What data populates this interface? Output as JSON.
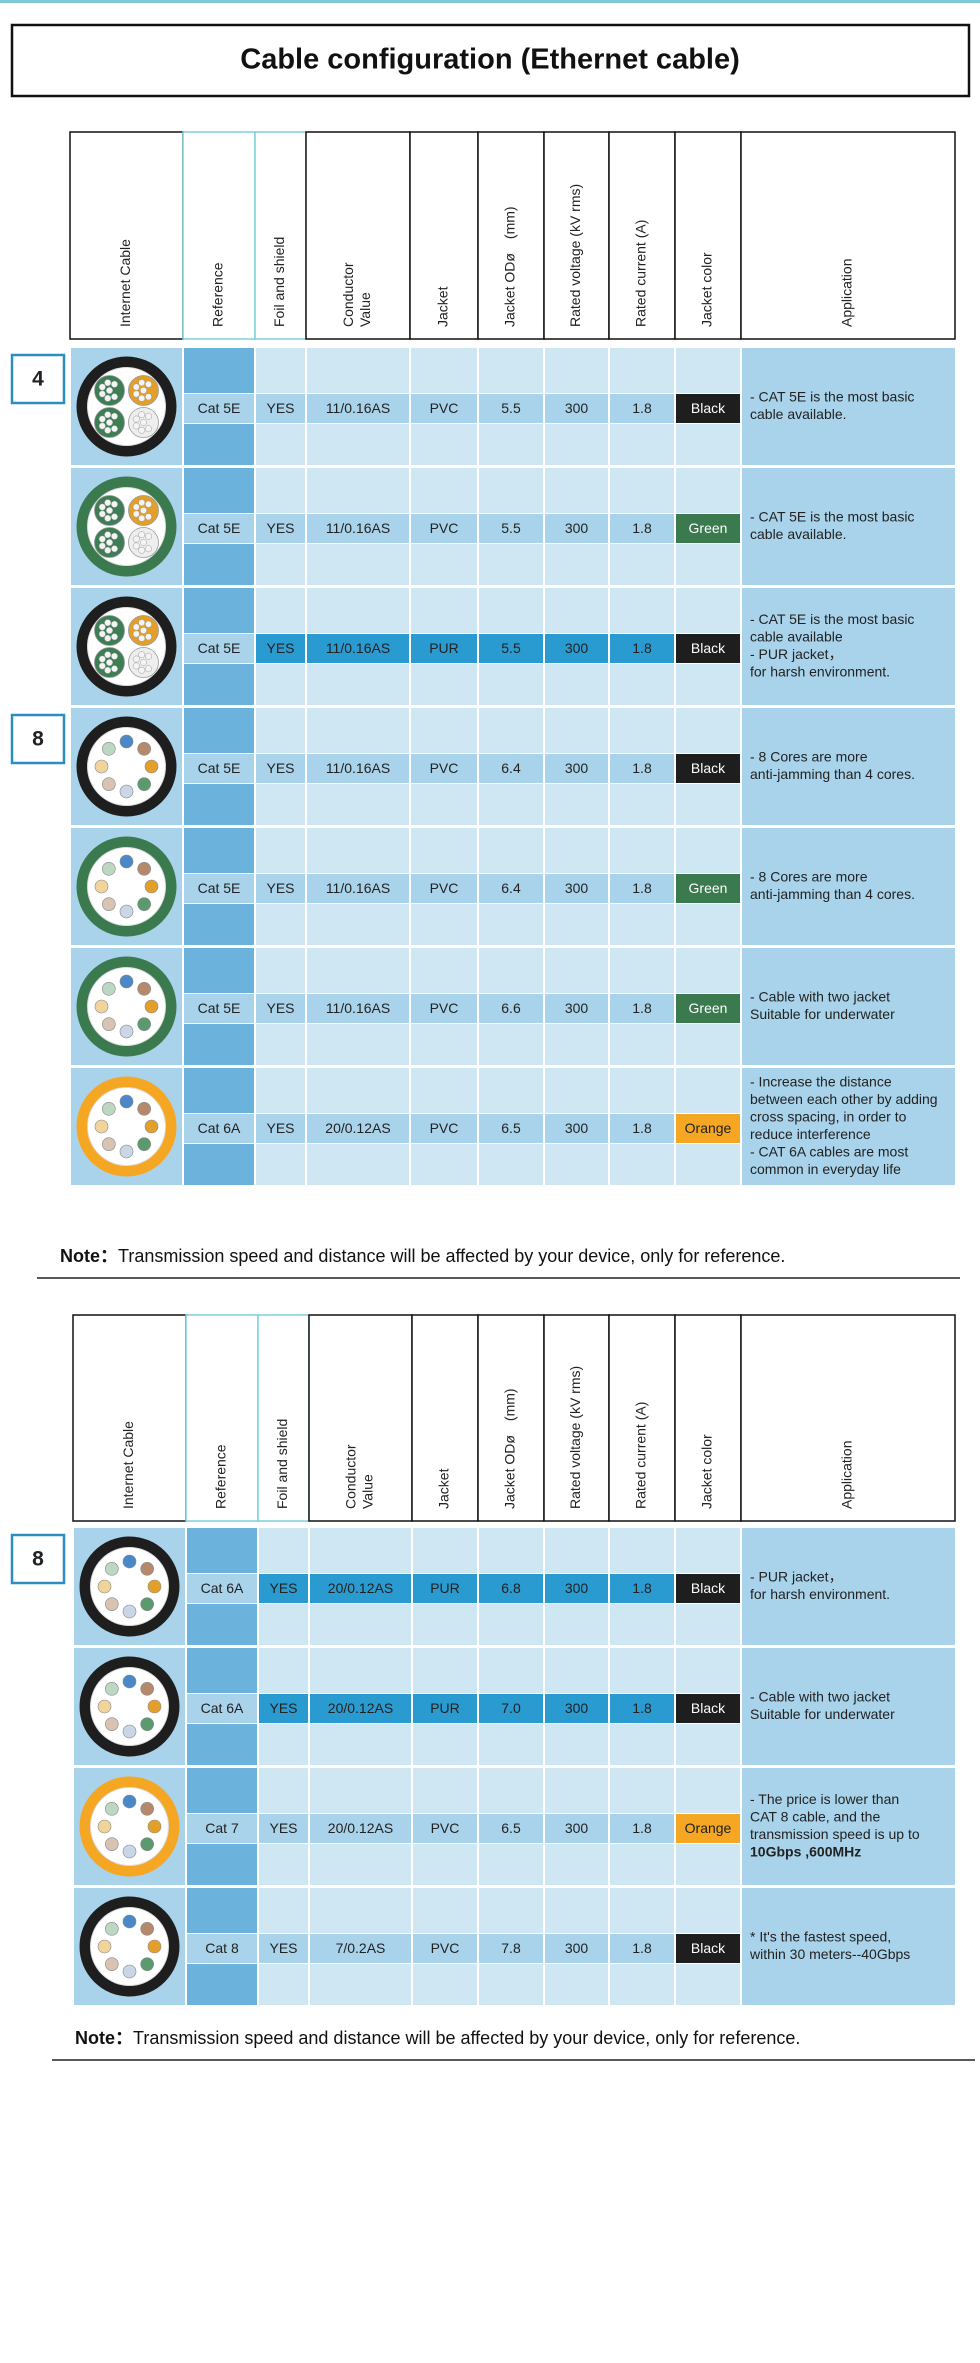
{
  "header": {
    "title": "Cable configuration (Ethernet cable)"
  },
  "table1": {
    "headers": [
      "Internet Cable",
      "Reference",
      "Foil and shield",
      [
        "Conductor",
        "Value"
      ],
      "Jacket",
      "Jacket ODø　(mm)",
      "Rated voltage (kV rms)",
      "Rated current (A)",
      "Jacket color",
      "Application"
    ],
    "groups": [
      {
        "label": "4",
        "rows": [
          {
            "ref": "Cat 5E",
            "foil": "YES",
            "conductor": "11/0.16AS",
            "jacket": "PVC",
            "od": "5.5",
            "voltage": "300",
            "current": "1.8",
            "color": "Black",
            "color_fill": "#1e1e1e",
            "color_text": "#ffffff",
            "application": [
              "-  CAT 5E is the most basic",
              "cable available."
            ]
          },
          {
            "ref": "Cat 5E",
            "foil": "YES",
            "conductor": "11/0.16AS",
            "jacket": "PVC",
            "od": "5.5",
            "voltage": "300",
            "current": "1.8",
            "color": "Green",
            "color_fill": "#3b7a4e",
            "color_text": "#ffffff",
            "application": [
              "-  CAT 5E is the most basic",
              "cable available."
            ]
          },
          {
            "ref": "Cat 5E",
            "foil": "YES",
            "conductor": "11/0.16AS",
            "jacket": "PUR",
            "od": "5.5",
            "voltage": "300",
            "current": "1.8",
            "color": "Black",
            "color_fill": "#1e1e1e",
            "color_text": "#ffffff",
            "band_color": "#2a9bd1",
            "application": [
              "-  CAT 5E is the most basic",
              "cable available",
              "-  PUR jacket，",
              "for harsh environment."
            ]
          }
        ]
      },
      {
        "label": "8",
        "rows": [
          {
            "ref": "Cat 5E",
            "foil": "YES",
            "conductor": "11/0.16AS",
            "jacket": "PVC",
            "od": "6.4",
            "voltage": "300",
            "current": "1.8",
            "color": "Black",
            "color_fill": "#1e1e1e",
            "color_text": "#ffffff",
            "application": [
              "-  8 Cores are more",
              "anti-jamming than 4 cores."
            ]
          },
          {
            "ref": "Cat 5E",
            "foil": "YES",
            "conductor": "11/0.16AS",
            "jacket": "PVC",
            "od": "6.4",
            "voltage": "300",
            "current": "1.8",
            "color": "Green",
            "color_fill": "#3b7a4e",
            "color_text": "#ffffff",
            "application": [
              "-  8 Cores are more",
              "anti-jamming than 4 cores."
            ]
          },
          {
            "ref": "Cat 5E",
            "foil": "YES",
            "conductor": "11/0.16AS",
            "jacket": "PVC",
            "od": "6.6",
            "voltage": "300",
            "current": "1.8",
            "color": "Green",
            "color_fill": "#3b7a4e",
            "color_text": "#ffffff",
            "application": [
              "-  Cable with two jacket",
              "Suitable for underwater"
            ]
          },
          {
            "ref": "Cat 6A",
            "foil": "YES",
            "conductor": "20/0.12AS",
            "jacket": "PVC",
            "od": "6.5",
            "voltage": "300",
            "current": "1.8",
            "color": "Orange",
            "color_fill": "#f5a623",
            "color_text": "#222222",
            "application": [
              "-  Increase the distance",
              "between each other by adding",
              "cross spacing, in order to",
              "reduce interference",
              "-  CAT 6A cables are most",
              "common in everyday life"
            ]
          }
        ]
      }
    ],
    "note": {
      "label": "Note：",
      "text": "Transmission speed and distance will be affected by your device, only for reference."
    }
  },
  "table2": {
    "headers": [
      "Internet Cable",
      "Reference",
      "Foil and shield",
      [
        "Conductor",
        "Value"
      ],
      "Jacket",
      "Jacket ODø　(mm)",
      "Rated voltage (kV rms)",
      "Rated current (A)",
      "Jacket color",
      "Application"
    ],
    "groups": [
      {
        "label": "8",
        "rows": [
          {
            "ref": "Cat 6A",
            "foil": "YES",
            "conductor": "20/0.12AS",
            "jacket": "PUR",
            "od": "6.8",
            "voltage": "300",
            "current": "1.8",
            "color": "Black",
            "color_fill": "#1e1e1e",
            "color_text": "#ffffff",
            "band_color": "#2a9bd1",
            "application": [
              "-  PUR jacket，",
              "for harsh environment."
            ]
          },
          {
            "ref": "Cat 6A",
            "foil": "YES",
            "conductor": "20/0.12AS",
            "jacket": "PUR",
            "od": "7.0",
            "voltage": "300",
            "current": "1.8",
            "color": "Black",
            "color_fill": "#1e1e1e",
            "color_text": "#ffffff",
            "band_color": "#2a9bd1",
            "application": [
              "-  Cable with two jacket",
              "Suitable for underwater"
            ]
          },
          {
            "ref": "Cat 7",
            "foil": "YES",
            "conductor": "20/0.12AS",
            "jacket": "PVC",
            "od": "6.5",
            "voltage": "300",
            "current": "1.8",
            "color": "Orange",
            "color_fill": "#f5a623",
            "color_text": "#222222",
            "bold_lines": [
              3
            ],
            "application": [
              "-  The price is lower than",
              "   CAT 8 cable, and the",
              "transmission speed is up to",
              "10Gbps ,600MHz"
            ]
          },
          {
            "ref": "Cat 8",
            "foil": "YES",
            "conductor": "7/0.2AS",
            "jacket": "PVC",
            "od": "7.8",
            "voltage": "300",
            "current": "1.8",
            "color": "Black",
            "color_fill": "#1e1e1e",
            "color_text": "#ffffff",
            "application": [
              "* It's the fastest speed,",
              "within 30 meters--40Gbps"
            ]
          }
        ]
      }
    ],
    "note": {
      "label": "Note：",
      "text": "Transmission speed and distance will be affected by your device, only for reference."
    }
  }
}
